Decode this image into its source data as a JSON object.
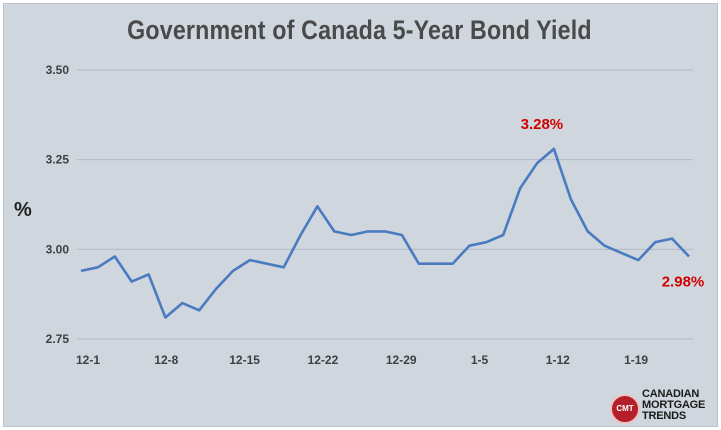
{
  "chart_data": {
    "type": "line",
    "title": "Government of Canada  5-Year Bond Yield",
    "ylabel": "%",
    "xlabel": "",
    "ylim": [
      2.75,
      3.5
    ],
    "yticks": [
      "3.50",
      "3.25",
      "3.00",
      "2.75"
    ],
    "ytick_values": [
      3.5,
      3.25,
      3.0,
      2.75
    ],
    "xticks": [
      "12-1",
      "12-8",
      "12-15",
      "12-22",
      "12-29",
      "1-5",
      "1-12",
      "1-19"
    ],
    "grid": "horizontal",
    "line_color": "#4a7bc0",
    "annotation_color": "#d00000",
    "series": [
      {
        "values": [
          2.94,
          2.95,
          2.98,
          2.91,
          2.93,
          2.81,
          2.85,
          2.83,
          2.89,
          2.94,
          2.97,
          2.96,
          2.95,
          3.04,
          3.12,
          3.05,
          3.04,
          3.05,
          3.05,
          3.04,
          2.96,
          2.96,
          2.96,
          3.01,
          3.02,
          3.04,
          3.17,
          3.24,
          3.28,
          3.14,
          3.05,
          3.01,
          2.99,
          2.97,
          3.02,
          3.03,
          2.98
        ]
      }
    ],
    "annotations": [
      {
        "text": "3.28%",
        "value": 3.28
      },
      {
        "text": "2.98%",
        "value": 2.98
      }
    ]
  },
  "logo": {
    "badge": "CMT",
    "lines": [
      "CANADIAN",
      "MORTGAGE",
      "TRENDS"
    ]
  }
}
